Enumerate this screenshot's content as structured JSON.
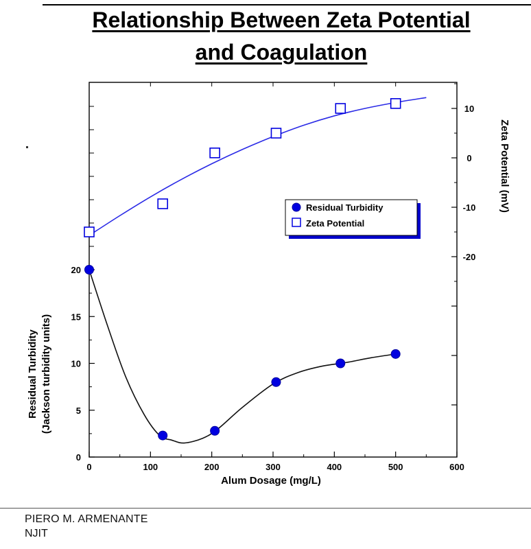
{
  "slide": {
    "title_line1": "Relationship Between Zeta Potential",
    "title_line2": "and Coagulation",
    "footer_line1": "PIERO M. ARMENANTE",
    "footer_line2": "NJIT"
  },
  "chart_data": {
    "type": "scatter",
    "title": "Relationship Between Zeta Potential and Coagulation",
    "xlabel": "Alum Dosage (mg/L)",
    "xlim": [
      0,
      600
    ],
    "x_ticks": [
      0,
      100,
      200,
      300,
      400,
      500,
      600
    ],
    "y_left": {
      "label_line1": "Residual Turbidity",
      "label_line2": "(Jackson turbidity units)",
      "ticks": [
        0,
        5,
        10,
        15,
        20
      ]
    },
    "y_right": {
      "label": "Zeta Potential (mV)",
      "ticks": [
        10,
        0,
        -10,
        -20
      ]
    },
    "legend_position": "center-right",
    "legend": [
      "Residual Turbidity",
      "Zeta Potential"
    ],
    "series": [
      {
        "name": "Residual Turbidity",
        "axis": "left",
        "marker": "filled-circle",
        "color": "#0000e0",
        "points": [
          [
            0,
            20
          ],
          [
            120,
            2.3
          ],
          [
            205,
            2.8
          ],
          [
            305,
            8
          ],
          [
            410,
            10
          ],
          [
            500,
            11
          ]
        ],
        "fit_curve": [
          [
            0,
            20
          ],
          [
            30,
            14
          ],
          [
            60,
            8.5
          ],
          [
            90,
            4.5
          ],
          [
            115,
            2.3
          ],
          [
            135,
            1.8
          ],
          [
            155,
            1.5
          ],
          [
            185,
            2.0
          ],
          [
            210,
            3.0
          ],
          [
            250,
            5.3
          ],
          [
            300,
            7.8
          ],
          [
            340,
            9.0
          ],
          [
            380,
            9.7
          ],
          [
            420,
            10.1
          ],
          [
            460,
            10.6
          ],
          [
            500,
            11.0
          ]
        ]
      },
      {
        "name": "Zeta Potential",
        "axis": "right",
        "marker": "open-square",
        "color": "#0000e0",
        "points": [
          [
            0,
            -15
          ],
          [
            120,
            -9.3
          ],
          [
            205,
            1
          ],
          [
            305,
            5
          ],
          [
            410,
            10
          ],
          [
            500,
            11
          ]
        ],
        "fit_curve": [
          [
            0,
            -15.7
          ],
          [
            50,
            -11.7
          ],
          [
            100,
            -7.9
          ],
          [
            150,
            -4.4
          ],
          [
            200,
            -1.2
          ],
          [
            250,
            1.7
          ],
          [
            300,
            4.3
          ],
          [
            350,
            6.6
          ],
          [
            400,
            8.5
          ],
          [
            450,
            10.0
          ],
          [
            500,
            11.2
          ],
          [
            550,
            12.2
          ]
        ]
      }
    ]
  }
}
